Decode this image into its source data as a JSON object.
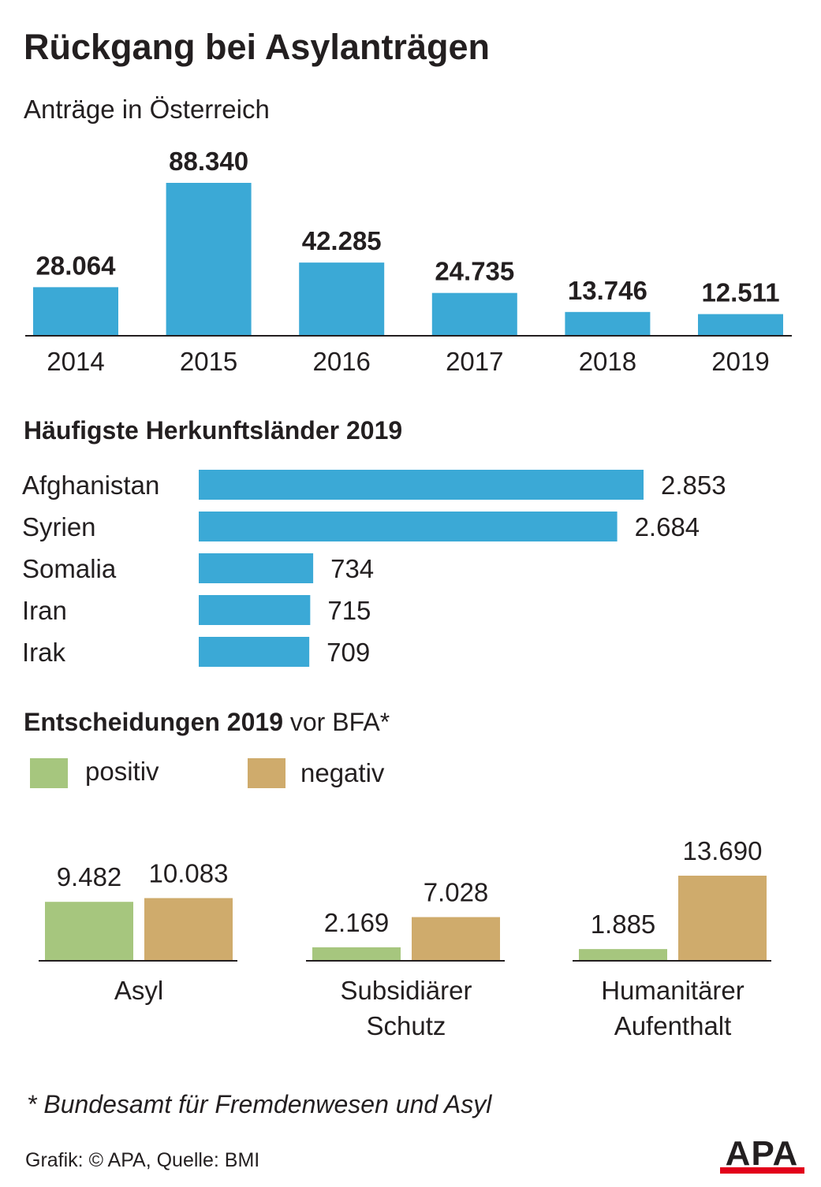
{
  "title": "Rückgang bei Asylanträgen",
  "subtitle": "Anträge in Österreich",
  "colors": {
    "bar": "#3ba9d6",
    "positive": "#a6c67e",
    "negative": "#cfab6c",
    "text": "#231f20",
    "logo_red": "#e2001a"
  },
  "chart_data": [
    {
      "type": "bar",
      "title": "Anträge in Österreich",
      "categories": [
        "2014",
        "2015",
        "2016",
        "2017",
        "2018",
        "2019"
      ],
      "values": [
        28064,
        88340,
        42285,
        24735,
        13746,
        12511
      ],
      "value_labels": [
        "28.064",
        "88.340",
        "42.285",
        "24.735",
        "13.746",
        "12.511"
      ],
      "ylim": [
        0,
        88340
      ],
      "grid": false
    },
    {
      "type": "bar",
      "orientation": "horizontal",
      "title": "Häufigste Herkunftsländer 2019",
      "categories": [
        "Afghanistan",
        "Syrien",
        "Somalia",
        "Iran",
        "Irak"
      ],
      "values": [
        2853,
        2684,
        734,
        715,
        709
      ],
      "value_labels": [
        "2.853",
        "2.684",
        "734",
        "715",
        "709"
      ],
      "xlim": [
        0,
        2853
      ],
      "grid": false
    },
    {
      "type": "bar",
      "title": "Entscheidungen 2019 vor BFA*",
      "categories": [
        "Asyl",
        "Subsidiärer Schutz",
        "Humanitärer Aufenthalt"
      ],
      "category_lines": [
        [
          "Asyl"
        ],
        [
          "Subsidiärer",
          "Schutz"
        ],
        [
          "Humanitärer",
          "Aufenthalt"
        ]
      ],
      "series": [
        {
          "name": "positiv",
          "values": [
            9482,
            2169,
            1885
          ],
          "value_labels": [
            "9.482",
            "2.169",
            "1.885"
          ]
        },
        {
          "name": "negativ",
          "values": [
            10083,
            7028,
            13690
          ],
          "value_labels": [
            "10.083",
            "7.028",
            "13.690"
          ]
        }
      ],
      "ylim": [
        0,
        13690
      ],
      "legend": "top-left",
      "grid": false
    }
  ],
  "decisions": {
    "title_bold": "Entscheidungen 2019",
    "title_rest": " vor BFA*"
  },
  "footnote": "* Bundesamt für Fremdenwesen und Asyl",
  "source": "Grafik: © APA, Quelle: BMI",
  "logo": {
    "text": "APA"
  }
}
